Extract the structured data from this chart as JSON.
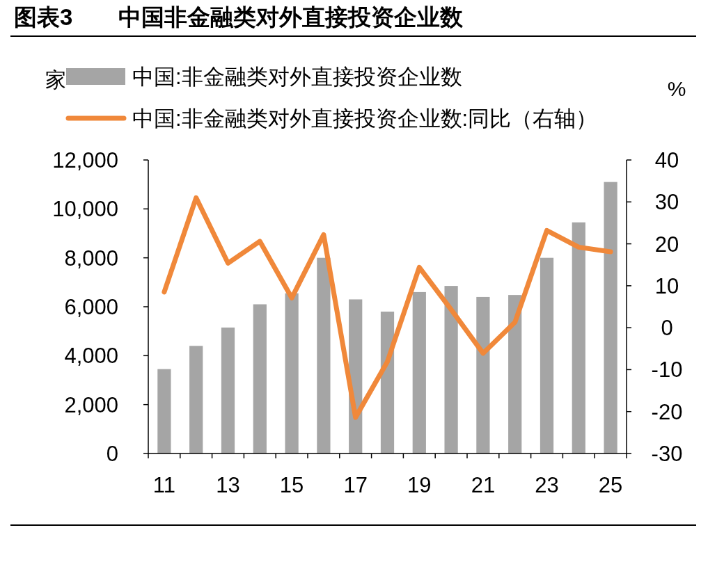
{
  "chart_data": {
    "type": "bar",
    "title": "图表3　　中国非金融类对外直接投资企业数",
    "ylabel": "家",
    "y2label": "%",
    "legend": "top",
    "categories": [
      "11",
      null,
      "13",
      null,
      "15",
      null,
      "17",
      null,
      "19",
      null,
      "21",
      null,
      "23",
      null,
      "25"
    ],
    "series": [
      {
        "name": "中国:非金融类对外直接投资企业数",
        "color": "#a5a5a5",
        "values": [
          3450,
          4400,
          5150,
          6100,
          6550,
          8000,
          6300,
          5800,
          6600,
          6850,
          6400,
          6480,
          8000,
          9450,
          11100
        ]
      },
      {
        "name": "中国:非金融类对外直接投资企业数:同比（右轴）",
        "type": "line",
        "axis": "y2",
        "color": "#f0883a",
        "values": [
          8.5,
          31,
          15.4,
          20.6,
          7.1,
          22.2,
          -21.4,
          -8.1,
          14.4,
          4.3,
          -6.1,
          1.3,
          23.2,
          19.2,
          18.1
        ]
      }
    ],
    "ylim": [
      0,
      12000
    ],
    "yticks": [
      0,
      {
        "value": 2000,
        "label": "2,000"
      },
      {
        "value": 4000,
        "label": "4,000"
      },
      {
        "value": 6000,
        "label": "6,000"
      },
      {
        "value": 8000,
        "label": "8,000"
      },
      {
        "value": 10000,
        "label": "10,000"
      },
      {
        "value": 12000,
        "label": "12,000"
      }
    ],
    "y2lim": [
      -30,
      40
    ],
    "y2ticks": [
      -30,
      -20,
      -10,
      0,
      10,
      20,
      30,
      40
    ]
  }
}
